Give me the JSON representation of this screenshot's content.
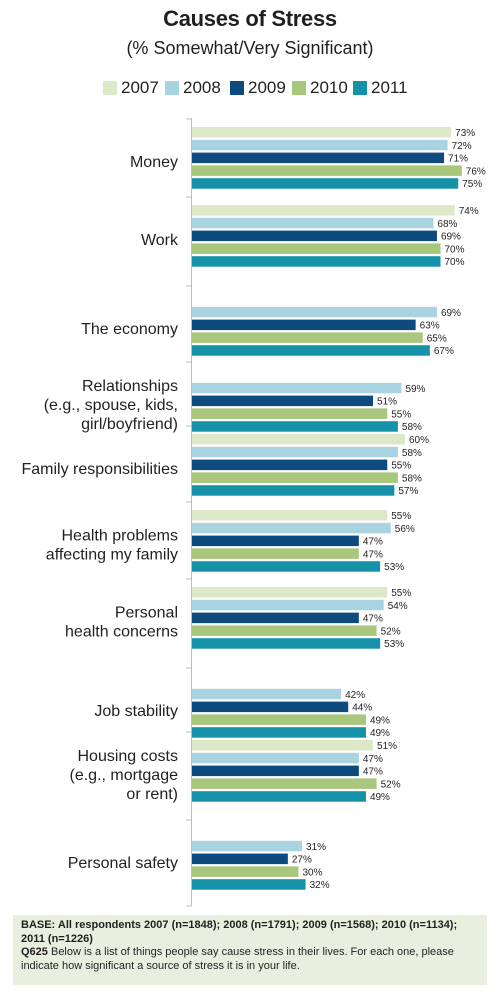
{
  "chart_data": {
    "type": "bar",
    "orientation": "horizontal",
    "title": "Causes of Stress",
    "subtitle": "(% Somewhat/Very Significant)",
    "value_suffix": "%",
    "legend_position": "top",
    "series": [
      {
        "name": "2007",
        "color": "#dce8c8"
      },
      {
        "name": "2008",
        "color": "#a9d3e0"
      },
      {
        "name": "2009",
        "color": "#0d4a7e"
      },
      {
        "name": "2010",
        "color": "#a8c77d"
      },
      {
        "name": "2011",
        "color": "#1592a8"
      }
    ],
    "categories": [
      {
        "label": [
          "Money"
        ],
        "values": [
          73,
          72,
          71,
          76,
          75
        ]
      },
      {
        "label": [
          "Work"
        ],
        "values": [
          74,
          68,
          69,
          70,
          70
        ]
      },
      {
        "label": [
          "The economy"
        ],
        "values": [
          null,
          69,
          63,
          65,
          67
        ]
      },
      {
        "label": [
          "Relationships",
          "(e.g., spouse, kids,",
          "girl/boyfriend)"
        ],
        "values": [
          null,
          59,
          51,
          55,
          58
        ]
      },
      {
        "label": [
          "Family responsibilities"
        ],
        "values": [
          60,
          58,
          55,
          58,
          57
        ]
      },
      {
        "label": [
          "Health problems",
          "affecting my family"
        ],
        "values": [
          55,
          56,
          47,
          47,
          53
        ]
      },
      {
        "label": [
          "Personal",
          "health concerns"
        ],
        "values": [
          55,
          54,
          47,
          52,
          53
        ]
      },
      {
        "label": [
          "Job stability"
        ],
        "values": [
          null,
          42,
          44,
          49,
          49
        ]
      },
      {
        "label": [
          "Housing costs",
          "(e.g., mortgage",
          "or rent)"
        ],
        "values": [
          51,
          47,
          47,
          52,
          49
        ]
      },
      {
        "label": [
          "Personal safety"
        ],
        "values": [
          null,
          31,
          27,
          30,
          32
        ]
      }
    ],
    "grid": false
  },
  "footnote": {
    "base_label": "BASE: All respondents 2007 (n=1848); 2008 (n=1791); 2009 (n=1568); 2010 (n=1134); 2011 (n=1226)",
    "question_label": "Q625",
    "question_text": " Below is a list of things people say cause stress in their lives. For each one, please indicate how significant a source of stress it is in your life."
  }
}
